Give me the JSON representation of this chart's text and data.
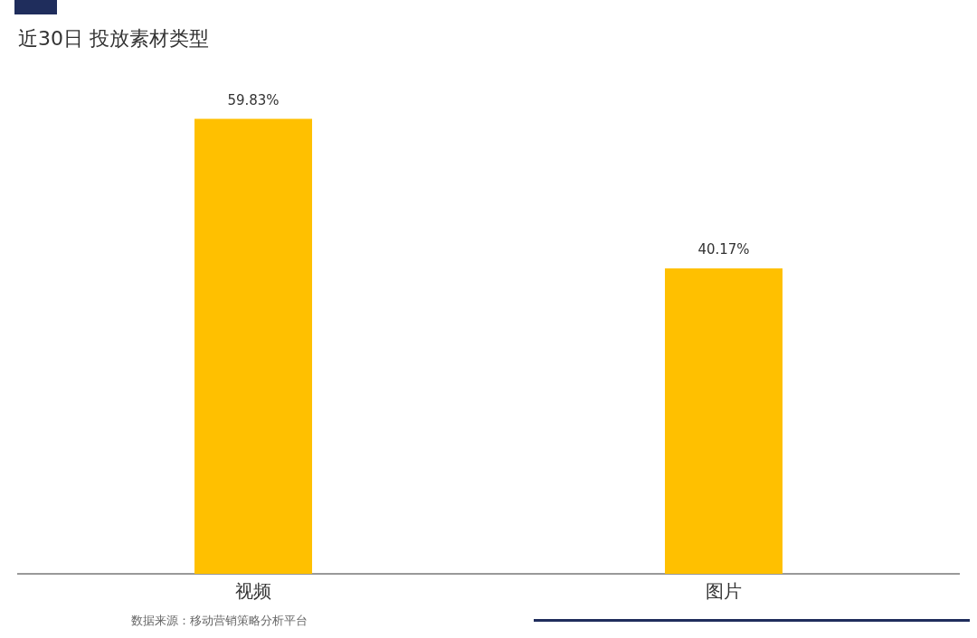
{
  "chart_data": {
    "type": "bar",
    "title": "近30日 投放素材类型",
    "categories": [
      "视频",
      "图片"
    ],
    "values": [
      59.83,
      40.17
    ],
    "color": "#ffc000",
    "value_labels": [
      "59.83%",
      "40.17%"
    ],
    "tick_labels": "x",
    "grid": false,
    "legend": false,
    "annotations": [
      "数据来源：移动营销策略分析平台"
    ]
  }
}
